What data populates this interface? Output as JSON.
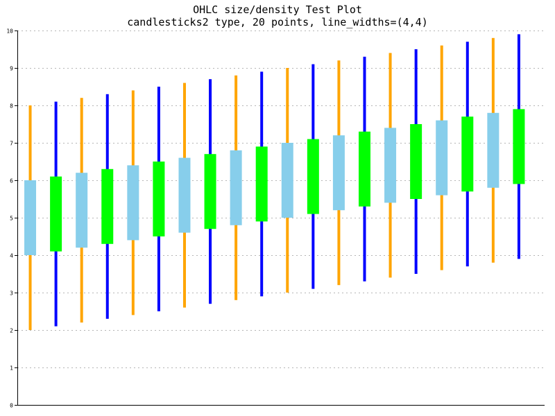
{
  "chart_data": {
    "type": "candlestick",
    "title": "OHLC size/density Test Plot",
    "subtitle": "candlesticks2 type, 20 points, line_widths=(4,4)",
    "ylim": [
      0,
      10
    ],
    "yticks": [
      "0",
      "1",
      "2",
      "3",
      "4",
      "5",
      "6",
      "7",
      "8",
      "9",
      "10"
    ],
    "grid": true,
    "colors": {
      "up_body": "#00ff00",
      "up_wick": "#0000ff",
      "down_body": "#87ceeb",
      "down_wick": "#ffa500",
      "grid": "#b4b4b4",
      "axis": "#000000"
    },
    "points": [
      {
        "open": 6.0,
        "high": 8.0,
        "low": 2.0,
        "close": 4.0
      },
      {
        "open": 4.1,
        "high": 8.1,
        "low": 2.1,
        "close": 6.1
      },
      {
        "open": 6.2,
        "high": 8.2,
        "low": 2.2,
        "close": 4.2
      },
      {
        "open": 4.3,
        "high": 8.3,
        "low": 2.3,
        "close": 6.3
      },
      {
        "open": 6.4,
        "high": 8.4,
        "low": 2.4,
        "close": 4.4
      },
      {
        "open": 4.5,
        "high": 8.5,
        "low": 2.5,
        "close": 6.5
      },
      {
        "open": 6.6,
        "high": 8.6,
        "low": 2.6,
        "close": 4.6
      },
      {
        "open": 4.7,
        "high": 8.7,
        "low": 2.7,
        "close": 6.7
      },
      {
        "open": 6.8,
        "high": 8.8,
        "low": 2.8,
        "close": 4.8
      },
      {
        "open": 4.9,
        "high": 8.9,
        "low": 2.9,
        "close": 6.9
      },
      {
        "open": 7.0,
        "high": 9.0,
        "low": 3.0,
        "close": 5.0
      },
      {
        "open": 5.1,
        "high": 9.1,
        "low": 3.1,
        "close": 7.1
      },
      {
        "open": 7.2,
        "high": 9.2,
        "low": 3.2,
        "close": 5.2
      },
      {
        "open": 5.3,
        "high": 9.3,
        "low": 3.3,
        "close": 7.3
      },
      {
        "open": 7.4,
        "high": 9.4,
        "low": 3.4,
        "close": 5.4
      },
      {
        "open": 5.5,
        "high": 9.5,
        "low": 3.5,
        "close": 7.5
      },
      {
        "open": 7.6,
        "high": 9.6,
        "low": 3.6,
        "close": 5.6
      },
      {
        "open": 5.7,
        "high": 9.7,
        "low": 3.7,
        "close": 7.7
      },
      {
        "open": 7.8,
        "high": 9.8,
        "low": 3.8,
        "close": 5.8
      },
      {
        "open": 5.9,
        "high": 9.9,
        "low": 3.9,
        "close": 7.9
      }
    ]
  }
}
